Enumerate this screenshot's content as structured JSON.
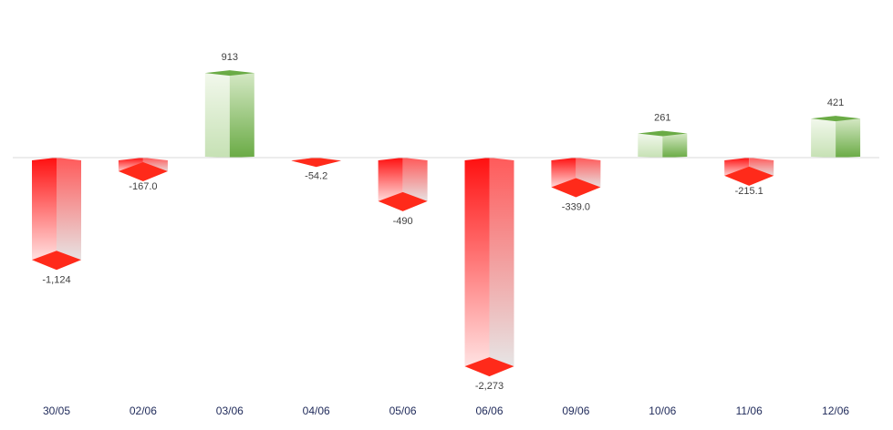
{
  "chart_data": {
    "type": "bar",
    "title": "",
    "xlabel": "",
    "ylabel": "",
    "categories": [
      "30/05",
      "02/06",
      "03/06",
      "04/06",
      "05/06",
      "06/06",
      "09/06",
      "10/06",
      "11/06",
      "12/06"
    ],
    "values": [
      -1124,
      -167.0,
      913,
      -54.2,
      -490,
      -2273,
      -339.0,
      261,
      -215.1,
      421
    ],
    "data_labels": [
      "-1,124",
      "-167.0",
      "913",
      "-54.2",
      "-490",
      "-2,273",
      "-339.0",
      "261",
      "-215.1",
      "421"
    ],
    "ylim": [
      -2700,
      1700
    ],
    "grid": false,
    "legend": "none",
    "colors": {
      "positive": "#70ad47",
      "negative": "#ff0000",
      "baseline": "#d9d9d9"
    }
  }
}
